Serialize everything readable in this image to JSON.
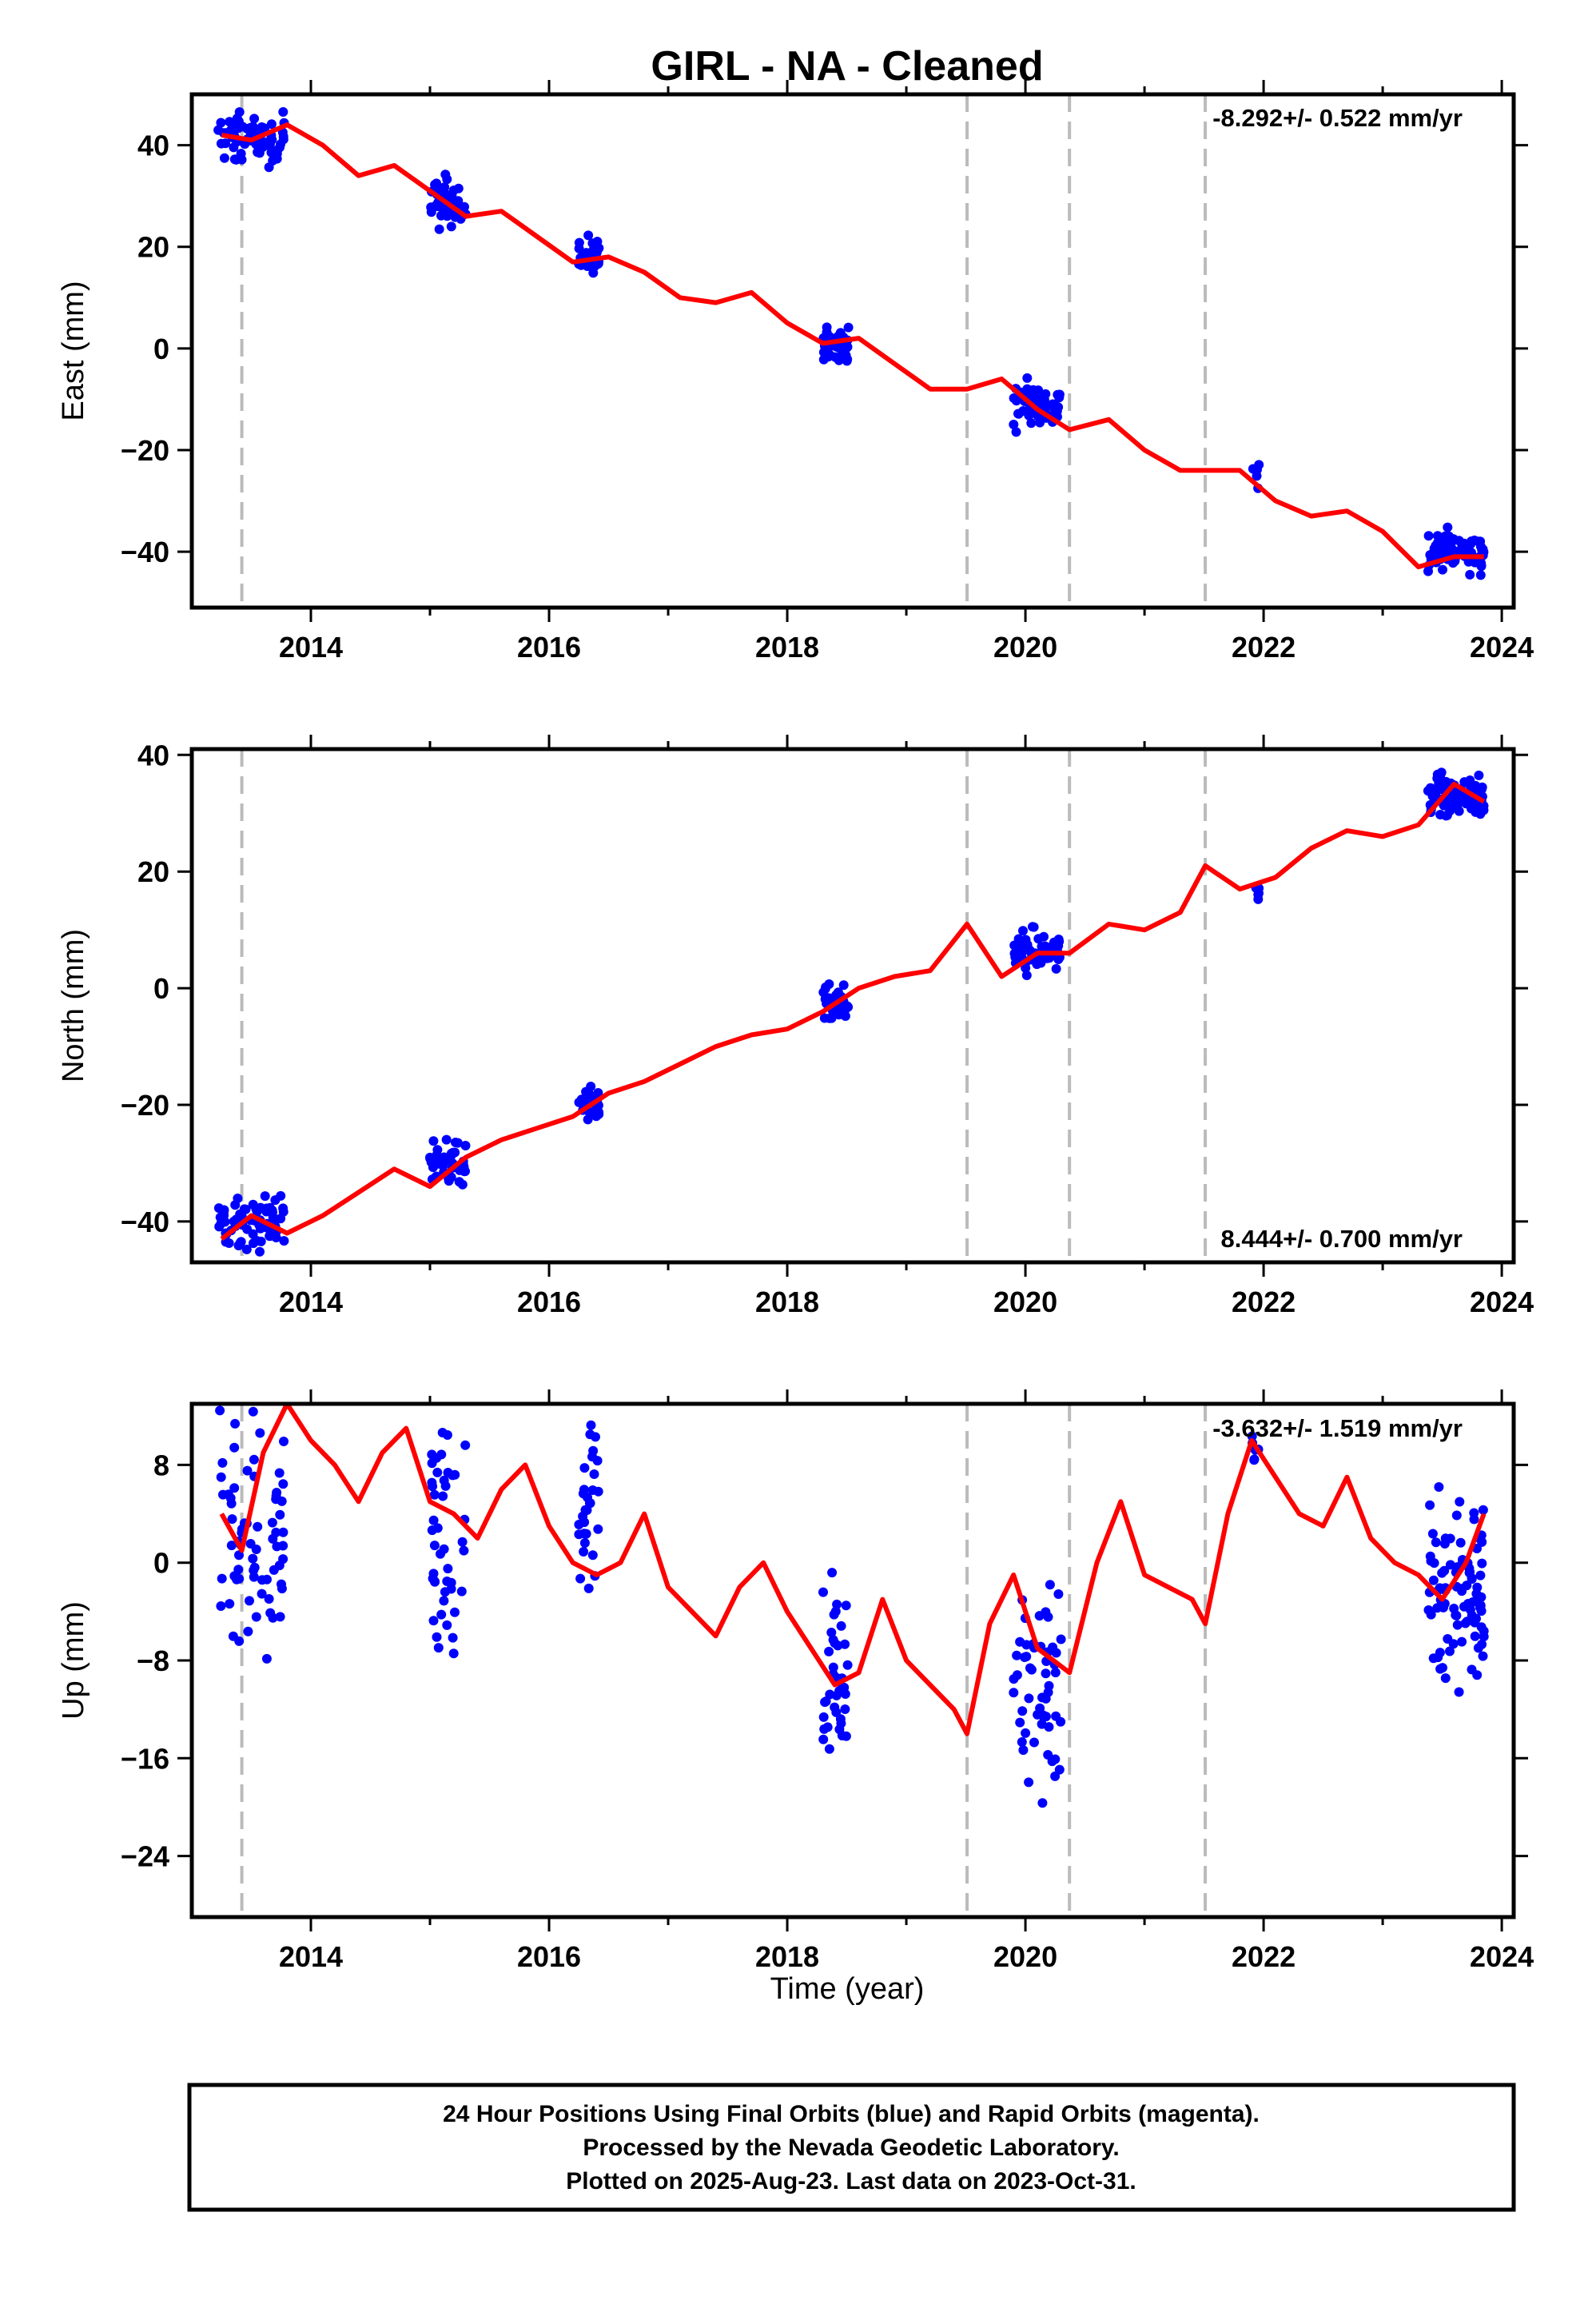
{
  "title": "GIRL  - NA - Cleaned",
  "xlabel": "Time (year)",
  "footer": [
    "24 Hour Positions Using Final Orbits (blue) and Rapid Orbits (magenta).",
    "Processed by the Nevada Geodetic Laboratory.",
    "Plotted on 2025-Aug-23. Last data on 2023-Oct-31."
  ],
  "colors": {
    "points": "#0000ff",
    "model": "#ff0000",
    "breaks": "#bbbbbb",
    "axis": "#000000"
  },
  "chart_data": [
    {
      "type": "scatter",
      "ylabel": "East (mm)",
      "rate_label": "-8.292+/- 0.522 mm/yr",
      "xlim": [
        2013.0,
        2024.1
      ],
      "ylim": [
        -51,
        50
      ],
      "x_ticks": [
        2014,
        2016,
        2018,
        2020,
        2022,
        2024
      ],
      "y_ticks": [
        -40,
        -20,
        0,
        20,
        40
      ],
      "breaks": [
        2013.42,
        2019.51,
        2020.37,
        2021.51
      ],
      "clusters": [
        {
          "x_start": 2013.22,
          "x_end": 2013.78,
          "y_center": 41,
          "y_spread": 4,
          "count": 70
        },
        {
          "x_start": 2015.0,
          "x_end": 2015.3,
          "y_center": 29,
          "y_spread": 4,
          "count": 45
        },
        {
          "x_start": 2016.25,
          "x_end": 2016.42,
          "y_center": 18,
          "y_spread": 3,
          "count": 30
        },
        {
          "x_start": 2018.3,
          "x_end": 2018.52,
          "y_center": 1,
          "y_spread": 2.5,
          "count": 40
        },
        {
          "x_start": 2019.9,
          "x_end": 2020.3,
          "y_center": -11,
          "y_spread": 4,
          "count": 55
        },
        {
          "x_start": 2021.9,
          "x_end": 2021.97,
          "y_center": -25,
          "y_spread": 3,
          "count": 6
        },
        {
          "x_start": 2023.38,
          "x_end": 2023.85,
          "y_center": -40,
          "y_spread": 3,
          "count": 95
        }
      ],
      "model": {
        "x": [
          2013.25,
          2013.5,
          2013.8,
          2014.1,
          2014.4,
          2014.7,
          2015.0,
          2015.3,
          2015.6,
          2015.9,
          2016.2,
          2016.5,
          2016.8,
          2017.1,
          2017.4,
          2017.7,
          2018.0,
          2018.3,
          2018.6,
          2018.9,
          2019.2,
          2019.51,
          2019.8,
          2020.1,
          2020.37,
          2020.7,
          2021.0,
          2021.3,
          2021.51,
          2021.8,
          2022.1,
          2022.4,
          2022.7,
          2023.0,
          2023.3,
          2023.6,
          2023.85
        ],
        "y": [
          42,
          41,
          44,
          40,
          34,
          36,
          31,
          26,
          27,
          22,
          17,
          18,
          15,
          10,
          9,
          11,
          5,
          1,
          2,
          -3,
          -8,
          -8,
          -6,
          -12,
          -16,
          -14,
          -20,
          -24,
          -24,
          -24,
          -30,
          -33,
          -32,
          -36,
          -43,
          -41,
          -41
        ]
      }
    },
    {
      "type": "scatter",
      "ylabel": "North (mm)",
      "rate_label": "8.444+/- 0.700 mm/yr",
      "xlim": [
        2013.0,
        2024.1
      ],
      "ylim": [
        -47,
        41
      ],
      "x_ticks": [
        2014,
        2016,
        2018,
        2020,
        2022,
        2024
      ],
      "y_ticks": [
        -40,
        -20,
        0,
        20,
        40
      ],
      "breaks": [
        2013.42,
        2019.51,
        2020.37,
        2021.51
      ],
      "clusters": [
        {
          "x_start": 2013.22,
          "x_end": 2013.78,
          "y_center": -40,
          "y_spread": 4,
          "count": 70
        },
        {
          "x_start": 2015.0,
          "x_end": 2015.3,
          "y_center": -30,
          "y_spread": 3,
          "count": 45
        },
        {
          "x_start": 2016.25,
          "x_end": 2016.42,
          "y_center": -20,
          "y_spread": 2.5,
          "count": 30
        },
        {
          "x_start": 2018.3,
          "x_end": 2018.52,
          "y_center": -3,
          "y_spread": 2.5,
          "count": 40
        },
        {
          "x_start": 2019.9,
          "x_end": 2020.3,
          "y_center": 6,
          "y_spread": 3,
          "count": 55
        },
        {
          "x_start": 2021.9,
          "x_end": 2021.97,
          "y_center": 17,
          "y_spread": 3,
          "count": 6
        },
        {
          "x_start": 2023.38,
          "x_end": 2023.85,
          "y_center": 33,
          "y_spread": 3,
          "count": 95
        }
      ],
      "model": {
        "x": [
          2013.25,
          2013.5,
          2013.8,
          2014.1,
          2014.4,
          2014.7,
          2015.0,
          2015.3,
          2015.6,
          2015.9,
          2016.2,
          2016.5,
          2016.8,
          2017.1,
          2017.4,
          2017.7,
          2018.0,
          2018.3,
          2018.6,
          2018.9,
          2019.2,
          2019.51,
          2019.8,
          2020.1,
          2020.37,
          2020.7,
          2021.0,
          2021.3,
          2021.51,
          2021.8,
          2022.1,
          2022.4,
          2022.7,
          2023.0,
          2023.3,
          2023.6,
          2023.85
        ],
        "y": [
          -43,
          -39,
          -42,
          -39,
          -35,
          -31,
          -34,
          -29,
          -26,
          -24,
          -22,
          -18,
          -16,
          -13,
          -10,
          -8,
          -7,
          -4,
          0,
          2,
          3,
          11,
          2,
          6,
          6,
          11,
          10,
          13,
          21,
          17,
          19,
          24,
          27,
          26,
          28,
          35,
          32
        ]
      }
    },
    {
      "type": "scatter",
      "ylabel": "Up (mm)",
      "rate_label": "-3.632+/- 1.519 mm/yr",
      "xlim": [
        2013.0,
        2024.1
      ],
      "ylim": [
        -29,
        13
      ],
      "x_ticks": [
        2014,
        2016,
        2018,
        2020,
        2022,
        2024
      ],
      "y_ticks": [
        -24,
        -16,
        -8,
        0,
        8
      ],
      "breaks": [
        2013.42,
        2019.51,
        2020.37,
        2021.51
      ],
      "clusters": [
        {
          "x_start": 2013.22,
          "x_end": 2013.78,
          "y_center": 2,
          "y_spread": 7,
          "count": 70
        },
        {
          "x_start": 2015.0,
          "x_end": 2015.3,
          "y_center": 2,
          "y_spread": 8,
          "count": 45
        },
        {
          "x_start": 2016.25,
          "x_end": 2016.42,
          "y_center": 5,
          "y_spread": 5,
          "count": 30
        },
        {
          "x_start": 2018.3,
          "x_end": 2018.52,
          "y_center": -9,
          "y_spread": 6,
          "count": 40
        },
        {
          "x_start": 2019.9,
          "x_end": 2020.3,
          "y_center": -10,
          "y_spread": 8,
          "count": 55
        },
        {
          "x_start": 2021.9,
          "x_end": 2021.97,
          "y_center": 9,
          "y_spread": 3,
          "count": 6
        },
        {
          "x_start": 2023.38,
          "x_end": 2023.85,
          "y_center": -2,
          "y_spread": 7,
          "count": 95
        }
      ],
      "model": {
        "x": [
          2013.25,
          2013.42,
          2013.6,
          2013.8,
          2014.0,
          2014.2,
          2014.4,
          2014.6,
          2014.8,
          2015.0,
          2015.2,
          2015.4,
          2015.6,
          2015.8,
          2016.0,
          2016.2,
          2016.4,
          2016.6,
          2016.8,
          2017.0,
          2017.2,
          2017.4,
          2017.6,
          2017.8,
          2018.0,
          2018.2,
          2018.4,
          2018.6,
          2018.8,
          2019.0,
          2019.2,
          2019.4,
          2019.51,
          2019.7,
          2019.9,
          2020.1,
          2020.37,
          2020.6,
          2020.8,
          2021.0,
          2021.2,
          2021.4,
          2021.51,
          2021.7,
          2021.9,
          2022.1,
          2022.3,
          2022.5,
          2022.7,
          2022.9,
          2023.1,
          2023.3,
          2023.5,
          2023.7,
          2023.85
        ],
        "y": [
          4,
          1,
          9,
          13,
          10,
          8,
          5,
          9,
          11,
          5,
          4,
          2,
          6,
          8,
          3,
          0,
          -1,
          0,
          4,
          -2,
          -4,
          -6,
          -2,
          0,
          -4,
          -7,
          -10,
          -9,
          -3,
          -8,
          -10,
          -12,
          -14,
          -5,
          -1,
          -7,
          -9,
          0,
          5,
          -1,
          -2,
          -3,
          -5,
          4,
          10,
          7,
          4,
          3,
          7,
          2,
          0,
          -1,
          -3,
          0,
          4
        ]
      }
    }
  ]
}
